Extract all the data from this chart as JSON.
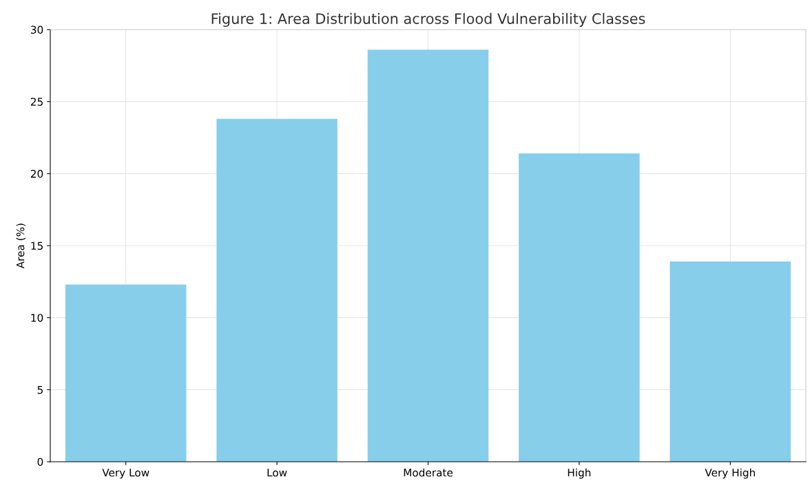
{
  "chart_data": {
    "type": "bar",
    "title": "Figure 1: Area Distribution across Flood Vulnerability Classes",
    "ylabel": "Area (%)",
    "categories": [
      "Very Low",
      "Low",
      "Moderate",
      "High",
      "Very High"
    ],
    "values": [
      12.3,
      23.8,
      28.6,
      21.4,
      13.9
    ],
    "color": "#87ceeb",
    "ylim": [
      0,
      30
    ],
    "yticks": [
      0,
      5,
      10,
      15,
      20,
      25,
      30
    ],
    "grid": true
  }
}
